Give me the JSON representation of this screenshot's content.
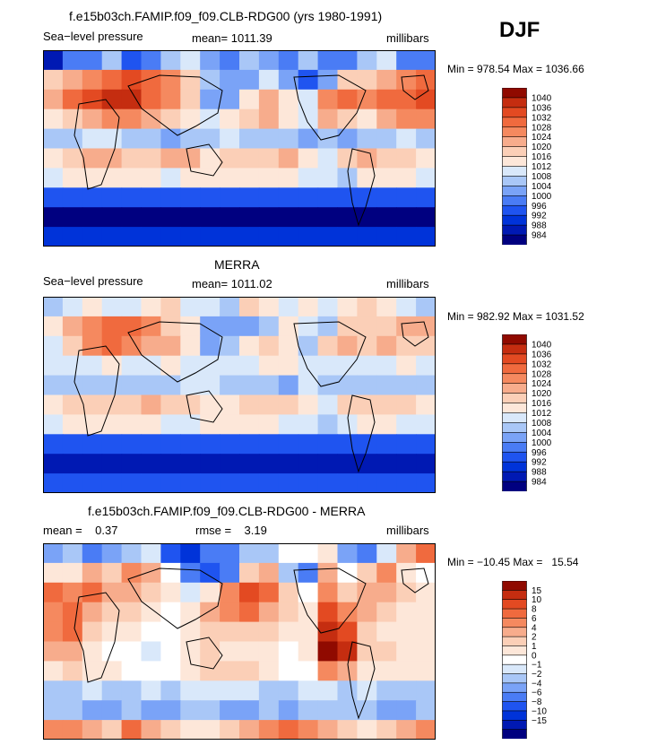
{
  "season": "DJF",
  "colors": {
    "pressure_levels": [
      "#000080",
      "#0019b3",
      "#0033d9",
      "#1f54f0",
      "#4a7cf5",
      "#7aa3f7",
      "#a9c7f7",
      "#d9e8fa",
      "#fde7d9",
      "#fbcfb7",
      "#f7ac8c",
      "#f5895f",
      "#f06a3e",
      "#e34a22",
      "#c52d10",
      "#900a00"
    ],
    "diff_levels": [
      "#000080",
      "#0019b3",
      "#0033d9",
      "#1f54f0",
      "#4a7cf5",
      "#7aa3f7",
      "#a9c7f7",
      "#d9e8fa",
      "#ffffff",
      "#fde7d9",
      "#fbcfb7",
      "#f7ac8c",
      "#f5895f",
      "#f06a3e",
      "#e34a22",
      "#c52d10",
      "#900a00"
    ]
  },
  "chart_data": [
    {
      "type": "heatmap",
      "title": "f.e15b03ch.FAMIP.f09_f09.CLB-RDG00 (yrs 1980-1991)",
      "left_label": "Sea−level pressure",
      "center_label": "mean= 1011.39",
      "right_label": "millibars",
      "minmax": "Min = 978.54 Max = 1036.66",
      "colorbar_labels": [
        "1040",
        "1036",
        "1032",
        "1028",
        "1024",
        "1020",
        "1016",
        "1012",
        "1008",
        "1004",
        "1000",
        "996",
        "992",
        "988",
        "984"
      ],
      "grid": [
        [
          1,
          4,
          4,
          6,
          3,
          4,
          6,
          7,
          5,
          4,
          6,
          5,
          4,
          6,
          4,
          4,
          6,
          7,
          4,
          4
        ],
        [
          9,
          10,
          11,
          12,
          13,
          12,
          11,
          9,
          6,
          5,
          5,
          7,
          5,
          3,
          5,
          9,
          9,
          10,
          11,
          12
        ],
        [
          10,
          12,
          13,
          14,
          14,
          12,
          11,
          9,
          5,
          5,
          8,
          10,
          8,
          7,
          11,
          12,
          11,
          12,
          12,
          13
        ],
        [
          8,
          9,
          10,
          11,
          11,
          10,
          9,
          8,
          7,
          8,
          9,
          10,
          8,
          7,
          10,
          9,
          8,
          10,
          11,
          11
        ],
        [
          6,
          6,
          7,
          7,
          6,
          6,
          5,
          6,
          6,
          7,
          6,
          6,
          6,
          5,
          6,
          5,
          6,
          6,
          7,
          6
        ],
        [
          8,
          9,
          10,
          10,
          9,
          9,
          10,
          10,
          8,
          9,
          9,
          9,
          10,
          8,
          7,
          9,
          10,
          9,
          9,
          8
        ],
        [
          7,
          8,
          8,
          8,
          8,
          8,
          7,
          8,
          8,
          8,
          8,
          8,
          8,
          7,
          7,
          6,
          8,
          8,
          8,
          7
        ],
        [
          3,
          3,
          3,
          3,
          3,
          3,
          3,
          3,
          3,
          3,
          3,
          3,
          3,
          3,
          3,
          3,
          3,
          3,
          3,
          3
        ],
        [
          0,
          0,
          0,
          0,
          0,
          0,
          0,
          0,
          0,
          0,
          0,
          0,
          0,
          0,
          0,
          0,
          0,
          0,
          0,
          0
        ],
        [
          2,
          2,
          2,
          2,
          2,
          2,
          2,
          2,
          2,
          2,
          2,
          2,
          2,
          2,
          2,
          2,
          2,
          2,
          2,
          2
        ]
      ]
    },
    {
      "type": "heatmap",
      "title": "MERRA",
      "left_label": "Sea−level pressure",
      "center_label": "mean= 1011.02",
      "right_label": "millibars",
      "minmax": "Min = 982.92 Max = 1031.52",
      "colorbar_labels": [
        "1040",
        "1036",
        "1032",
        "1028",
        "1024",
        "1020",
        "1016",
        "1012",
        "1008",
        "1004",
        "1000",
        "996",
        "992",
        "988",
        "984"
      ],
      "grid": [
        [
          6,
          7,
          8,
          7,
          7,
          8,
          9,
          7,
          7,
          6,
          9,
          8,
          7,
          8,
          7,
          8,
          9,
          8,
          7,
          6
        ],
        [
          8,
          10,
          11,
          12,
          12,
          11,
          9,
          8,
          5,
          5,
          5,
          6,
          8,
          7,
          6,
          9,
          9,
          9,
          10,
          10
        ],
        [
          7,
          9,
          11,
          12,
          11,
          10,
          10,
          8,
          5,
          6,
          8,
          9,
          8,
          6,
          9,
          10,
          9,
          10,
          9,
          9
        ],
        [
          7,
          7,
          7,
          8,
          7,
          7,
          8,
          7,
          7,
          7,
          7,
          8,
          8,
          7,
          7,
          7,
          7,
          7,
          8,
          7
        ],
        [
          6,
          6,
          6,
          6,
          6,
          6,
          6,
          7,
          7,
          6,
          6,
          6,
          5,
          7,
          6,
          6,
          6,
          6,
          6,
          6
        ],
        [
          8,
          9,
          9,
          9,
          9,
          10,
          9,
          9,
          8,
          8,
          9,
          9,
          9,
          8,
          7,
          9,
          9,
          9,
          9,
          8
        ],
        [
          7,
          8,
          8,
          8,
          8,
          8,
          7,
          7,
          8,
          8,
          8,
          8,
          7,
          7,
          6,
          7,
          8,
          8,
          7,
          7
        ],
        [
          3,
          3,
          3,
          3,
          3,
          3,
          3,
          3,
          3,
          3,
          3,
          3,
          3,
          3,
          3,
          3,
          3,
          3,
          3,
          3
        ],
        [
          1,
          1,
          1,
          1,
          1,
          1,
          1,
          1,
          1,
          1,
          1,
          1,
          1,
          1,
          1,
          1,
          1,
          1,
          1,
          1
        ],
        [
          3,
          3,
          3,
          3,
          3,
          3,
          3,
          3,
          3,
          3,
          3,
          3,
          3,
          3,
          3,
          3,
          3,
          3,
          3,
          3
        ]
      ]
    },
    {
      "type": "heatmap",
      "title": "f.e15b03ch.FAMIP.f09_f09.CLB-RDG00 - MERRA",
      "left_label": "mean =    0.37",
      "center_label": "rmse =    3.19",
      "right_label": "millibars",
      "minmax": "Min = −10.45 Max =   15.54",
      "colorbar_labels": [
        "15",
        "10",
        "8",
        "6",
        "4",
        "2",
        "1",
        "0",
        "−1",
        "−2",
        "−4",
        "−6",
        "−8",
        "−10",
        "−15"
      ],
      "grid": [
        [
          5,
          6,
          4,
          5,
          6,
          7,
          3,
          2,
          4,
          4,
          6,
          6,
          8,
          8,
          9,
          5,
          4,
          7,
          11,
          13
        ],
        [
          9,
          9,
          11,
          10,
          12,
          11,
          8,
          4,
          3,
          4,
          10,
          11,
          6,
          4,
          11,
          8,
          10,
          12,
          9,
          8
        ],
        [
          13,
          12,
          13,
          11,
          11,
          10,
          9,
          7,
          9,
          12,
          14,
          13,
          10,
          8,
          12,
          10,
          11,
          11,
          10,
          9
        ],
        [
          12,
          13,
          11,
          10,
          10,
          9,
          8,
          9,
          11,
          12,
          13,
          11,
          10,
          9,
          14,
          12,
          11,
          10,
          9,
          9
        ],
        [
          12,
          13,
          10,
          9,
          9,
          8,
          8,
          9,
          10,
          10,
          10,
          10,
          9,
          9,
          15,
          14,
          10,
          9,
          9,
          9
        ],
        [
          11,
          11,
          9,
          8,
          8,
          7,
          8,
          9,
          10,
          9,
          9,
          9,
          8,
          9,
          16,
          15,
          10,
          10,
          9,
          9
        ],
        [
          9,
          10,
          9,
          9,
          8,
          8,
          8,
          9,
          10,
          10,
          10,
          9,
          8,
          8,
          12,
          11,
          9,
          9,
          9,
          9
        ],
        [
          6,
          6,
          7,
          6,
          6,
          7,
          6,
          7,
          7,
          7,
          7,
          6,
          6,
          7,
          7,
          6,
          7,
          6,
          6,
          6
        ],
        [
          6,
          6,
          5,
          5,
          6,
          5,
          5,
          6,
          6,
          5,
          5,
          6,
          5,
          6,
          6,
          6,
          6,
          5,
          5,
          6
        ],
        [
          12,
          12,
          11,
          10,
          13,
          11,
          10,
          9,
          9,
          10,
          11,
          12,
          13,
          12,
          11,
          10,
          9,
          10,
          11,
          12
        ]
      ]
    }
  ]
}
